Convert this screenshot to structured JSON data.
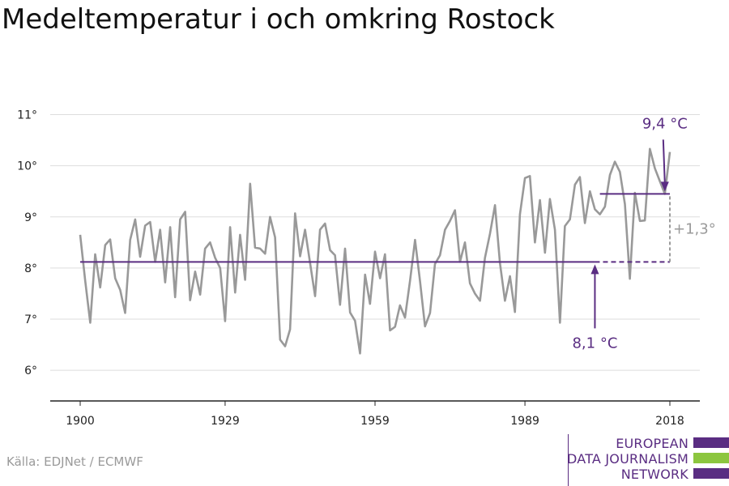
{
  "title": "Medeltemperatur i och omkring Rostock",
  "source": "Källa: EDJNet / ECMWF",
  "logo": {
    "lines": [
      "EUROPEAN",
      "DATA JOURNALISM",
      "NETWORK"
    ],
    "colors": {
      "purple": "#5a2d82",
      "green": "#8cc63f"
    }
  },
  "chart_data": {
    "type": "line",
    "title": "Medeltemperatur i och omkring Rostock",
    "xlabel": "",
    "ylabel": "",
    "x_ticks": [
      1900,
      1929,
      1959,
      1989,
      2018
    ],
    "y_ticks": [
      6,
      7,
      8,
      9,
      10,
      11
    ],
    "y_tick_labels": [
      "6°",
      "7°",
      "8°",
      "9°",
      "10°",
      "11°"
    ],
    "xlim": [
      1894,
      2024
    ],
    "ylim": [
      5.4,
      11.5
    ],
    "grid": true,
    "series": [
      {
        "name": "",
        "color": "#999999",
        "x": [
          1900,
          1901,
          1902,
          1903,
          1904,
          1905,
          1906,
          1907,
          1908,
          1909,
          1910,
          1911,
          1912,
          1913,
          1914,
          1915,
          1916,
          1917,
          1918,
          1919,
          1920,
          1921,
          1922,
          1923,
          1924,
          1925,
          1926,
          1927,
          1928,
          1929,
          1930,
          1931,
          1932,
          1933,
          1934,
          1935,
          1936,
          1937,
          1938,
          1939,
          1940,
          1941,
          1942,
          1943,
          1944,
          1945,
          1946,
          1947,
          1948,
          1949,
          1950,
          1951,
          1952,
          1953,
          1954,
          1955,
          1956,
          1957,
          1958,
          1959,
          1960,
          1961,
          1962,
          1963,
          1964,
          1965,
          1966,
          1967,
          1968,
          1969,
          1970,
          1971,
          1972,
          1973,
          1974,
          1975,
          1976,
          1977,
          1978,
          1979,
          1980,
          1981,
          1982,
          1983,
          1984,
          1985,
          1986,
          1987,
          1988,
          1989,
          1990,
          1991,
          1992,
          1993,
          1994,
          1995,
          1996,
          1997,
          1998,
          1999,
          2000,
          2001,
          2002,
          2003,
          2004,
          2005,
          2006,
          2007,
          2008,
          2009,
          2010,
          2011,
          2012,
          2013,
          2014,
          2015,
          2016,
          2017,
          2018
        ],
        "values": [
          8.65,
          7.75,
          6.93,
          8.27,
          7.62,
          8.45,
          8.56,
          7.8,
          7.57,
          7.12,
          8.55,
          8.95,
          8.22,
          8.83,
          8.9,
          8.12,
          8.75,
          7.72,
          8.8,
          7.43,
          8.95,
          9.1,
          7.37,
          7.93,
          7.48,
          8.38,
          8.5,
          8.2,
          8.0,
          6.96,
          8.8,
          7.52,
          8.65,
          7.77,
          9.65,
          8.4,
          8.38,
          8.28,
          9.0,
          8.6,
          6.6,
          6.47,
          6.8,
          9.07,
          8.23,
          8.75,
          8.1,
          7.45,
          8.75,
          8.87,
          8.35,
          8.25,
          7.28,
          8.38,
          7.13,
          6.97,
          6.33,
          7.87,
          7.3,
          8.32,
          7.8,
          8.27,
          6.78,
          6.85,
          7.27,
          7.03,
          7.75,
          8.55,
          7.75,
          6.86,
          7.12,
          8.08,
          8.25,
          8.75,
          8.92,
          9.13,
          8.12,
          8.5,
          7.7,
          7.5,
          7.36,
          8.2,
          8.67,
          9.23,
          8.1,
          7.36,
          7.84,
          7.14,
          9.05,
          9.76,
          9.8,
          8.5,
          9.33,
          8.3,
          9.35,
          8.75,
          6.93,
          8.82,
          8.95,
          9.63,
          9.78,
          8.88,
          9.5,
          9.15,
          9.05,
          9.2,
          9.82,
          10.08,
          9.88,
          9.25,
          7.79,
          9.47,
          8.92,
          8.93,
          10.33,
          9.95,
          9.7,
          9.45,
          10.27
        ]
      }
    ],
    "reference_lines": [
      {
        "label": "8,1 °C",
        "value": 8.12,
        "x_start": 1900,
        "x_end": 2018,
        "solid_until": 2003,
        "color": "#5a2d82"
      },
      {
        "label": "9,4 °C",
        "value": 9.45,
        "x_start": 2004,
        "x_end": 2018,
        "color": "#5a2d82"
      }
    ],
    "difference": {
      "label": "+1,3°",
      "x": 2018,
      "from": 8.12,
      "to": 9.45,
      "color": "#9a9a9a"
    },
    "annotations": [
      {
        "label": "8,1 °C",
        "x": 2003,
        "y": 8.12,
        "arrow": "up"
      },
      {
        "label": "9,4 °C",
        "x": 2017,
        "y": 9.45,
        "arrow": "down"
      }
    ]
  }
}
